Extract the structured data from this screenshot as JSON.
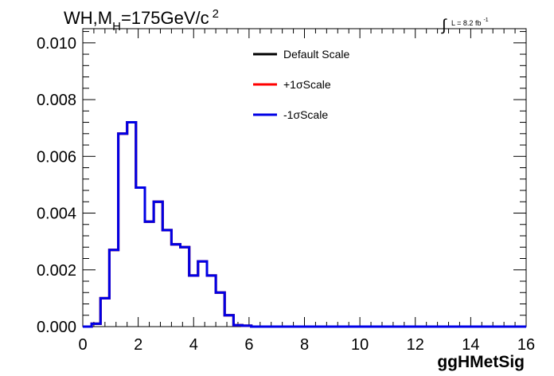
{
  "chart_data": {
    "type": "line",
    "title_main": "WH,M",
    "title_sub": "H",
    "title_rest": "=175GeV/c",
    "title_sup": "2",
    "lumi_label": "L = 8.2 fb",
    "lumi_sup": "-1",
    "xlabel": "ggHMetSig",
    "ylabel": "",
    "xlim": [
      0,
      16
    ],
    "ylim": [
      0,
      0.0105
    ],
    "x_ticks": [
      "0",
      "2",
      "4",
      "6",
      "8",
      "10",
      "12",
      "14",
      "16"
    ],
    "y_ticks": [
      "0.000",
      "0.002",
      "0.004",
      "0.006",
      "0.008",
      "0.010"
    ],
    "bin_width": 0.32,
    "legend_position": "top-center",
    "series": [
      {
        "name": "Default Scale",
        "color": "#000000",
        "values": [
          0.0,
          0.0001,
          0.001,
          0.0027,
          0.0068,
          0.0072,
          0.0049,
          0.0037,
          0.0044,
          0.0034,
          0.0029,
          0.0028,
          0.0018,
          0.0023,
          0.0018,
          0.0012,
          0.0004,
          5e-05,
          3e-05,
          0.0,
          0.0,
          0.0,
          0.0,
          0.0,
          0.0,
          0.0,
          0.0,
          0.0,
          0.0,
          0.0,
          0.0,
          0.0,
          0.0,
          0.0,
          0.0,
          0.0,
          0.0,
          0.0,
          0.0,
          0.0,
          0.0,
          0.0,
          0.0,
          0.0,
          0.0,
          0.0,
          0.0,
          0.0,
          0.0,
          0.0
        ]
      },
      {
        "name": "+1σScale",
        "color": "#ff0000",
        "values": [
          0.0,
          0.0001,
          0.001,
          0.0027,
          0.0068,
          0.0072,
          0.0049,
          0.0037,
          0.0044,
          0.0034,
          0.0029,
          0.0028,
          0.0018,
          0.0023,
          0.0018,
          0.0012,
          0.0004,
          5e-05,
          3e-05,
          0.0,
          0.0,
          0.0,
          0.0,
          0.0,
          0.0,
          0.0,
          0.0,
          0.0,
          0.0,
          0.0,
          0.0,
          0.0,
          0.0,
          0.0,
          0.0,
          0.0,
          0.0,
          0.0,
          0.0,
          0.0,
          0.0,
          0.0,
          0.0,
          0.0,
          0.0,
          0.0,
          0.0,
          0.0,
          0.0,
          0.0
        ]
      },
      {
        "name": "-1σScale",
        "color": "#0000e6",
        "values": [
          0.0,
          0.0001,
          0.001,
          0.0027,
          0.0068,
          0.0072,
          0.0049,
          0.0037,
          0.0044,
          0.0034,
          0.0029,
          0.0028,
          0.0018,
          0.0023,
          0.0018,
          0.0012,
          0.0004,
          5e-05,
          3e-05,
          0.0,
          0.0,
          0.0,
          0.0,
          0.0,
          0.0,
          0.0,
          0.0,
          0.0,
          0.0,
          0.0,
          0.0,
          0.0,
          0.0,
          0.0,
          0.0,
          0.0,
          0.0,
          0.0,
          0.0,
          0.0,
          0.0,
          0.0,
          0.0,
          0.0,
          0.0,
          0.0,
          0.0,
          0.0,
          0.0,
          0.0
        ]
      }
    ]
  }
}
